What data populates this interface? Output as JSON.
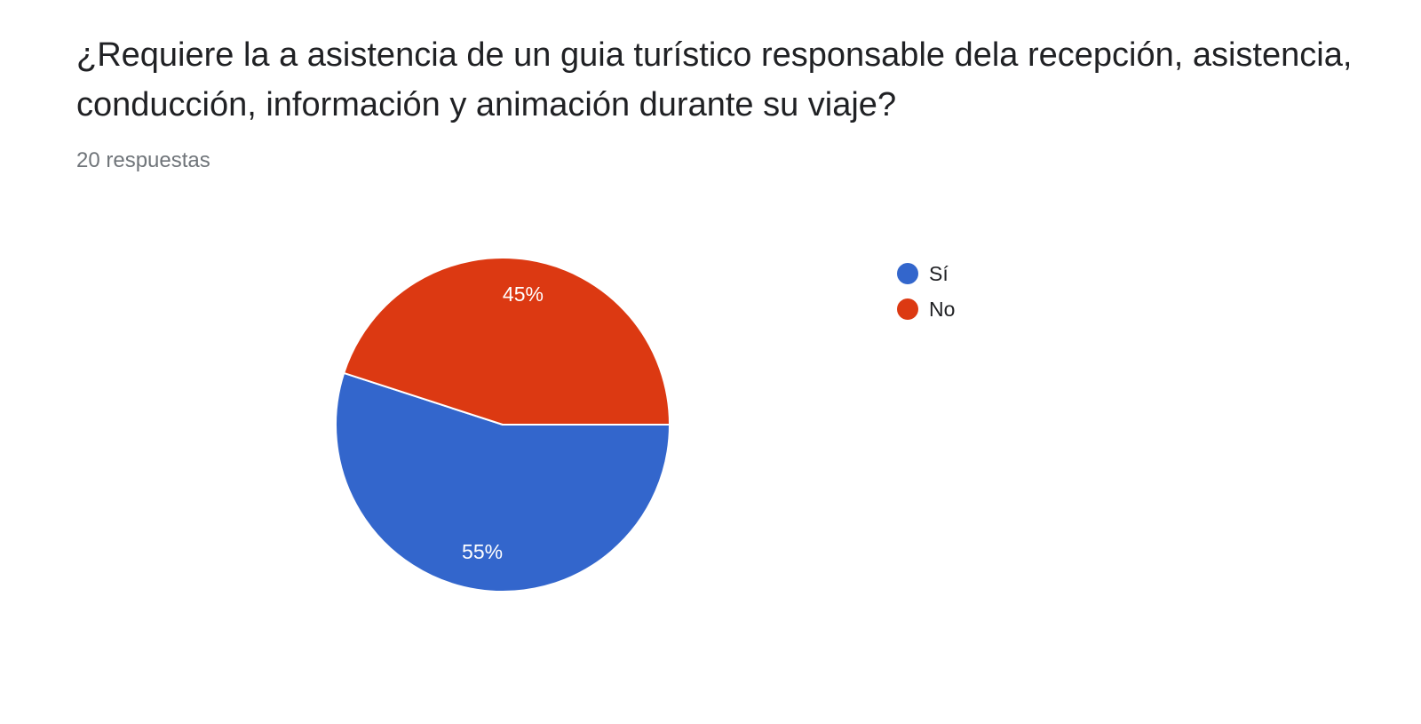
{
  "question": {
    "title": "¿Requiere la a asistencia de un guia turístico responsable dela recepción, asistencia, conducción, información y animación durante su viaje?",
    "response_count": "20 respuestas"
  },
  "chart_data": {
    "type": "pie",
    "title": "¿Requiere la a asistencia de un guia turístico responsable dela recepción, asistencia, conducción, información y animación durante su viaje?",
    "categories": [
      "Sí",
      "No"
    ],
    "values": [
      55,
      45
    ],
    "labels": [
      "55%",
      "45%"
    ],
    "colors": [
      "#3366cc",
      "#dc3912"
    ],
    "legend_position": "right",
    "total_responses": 20
  }
}
